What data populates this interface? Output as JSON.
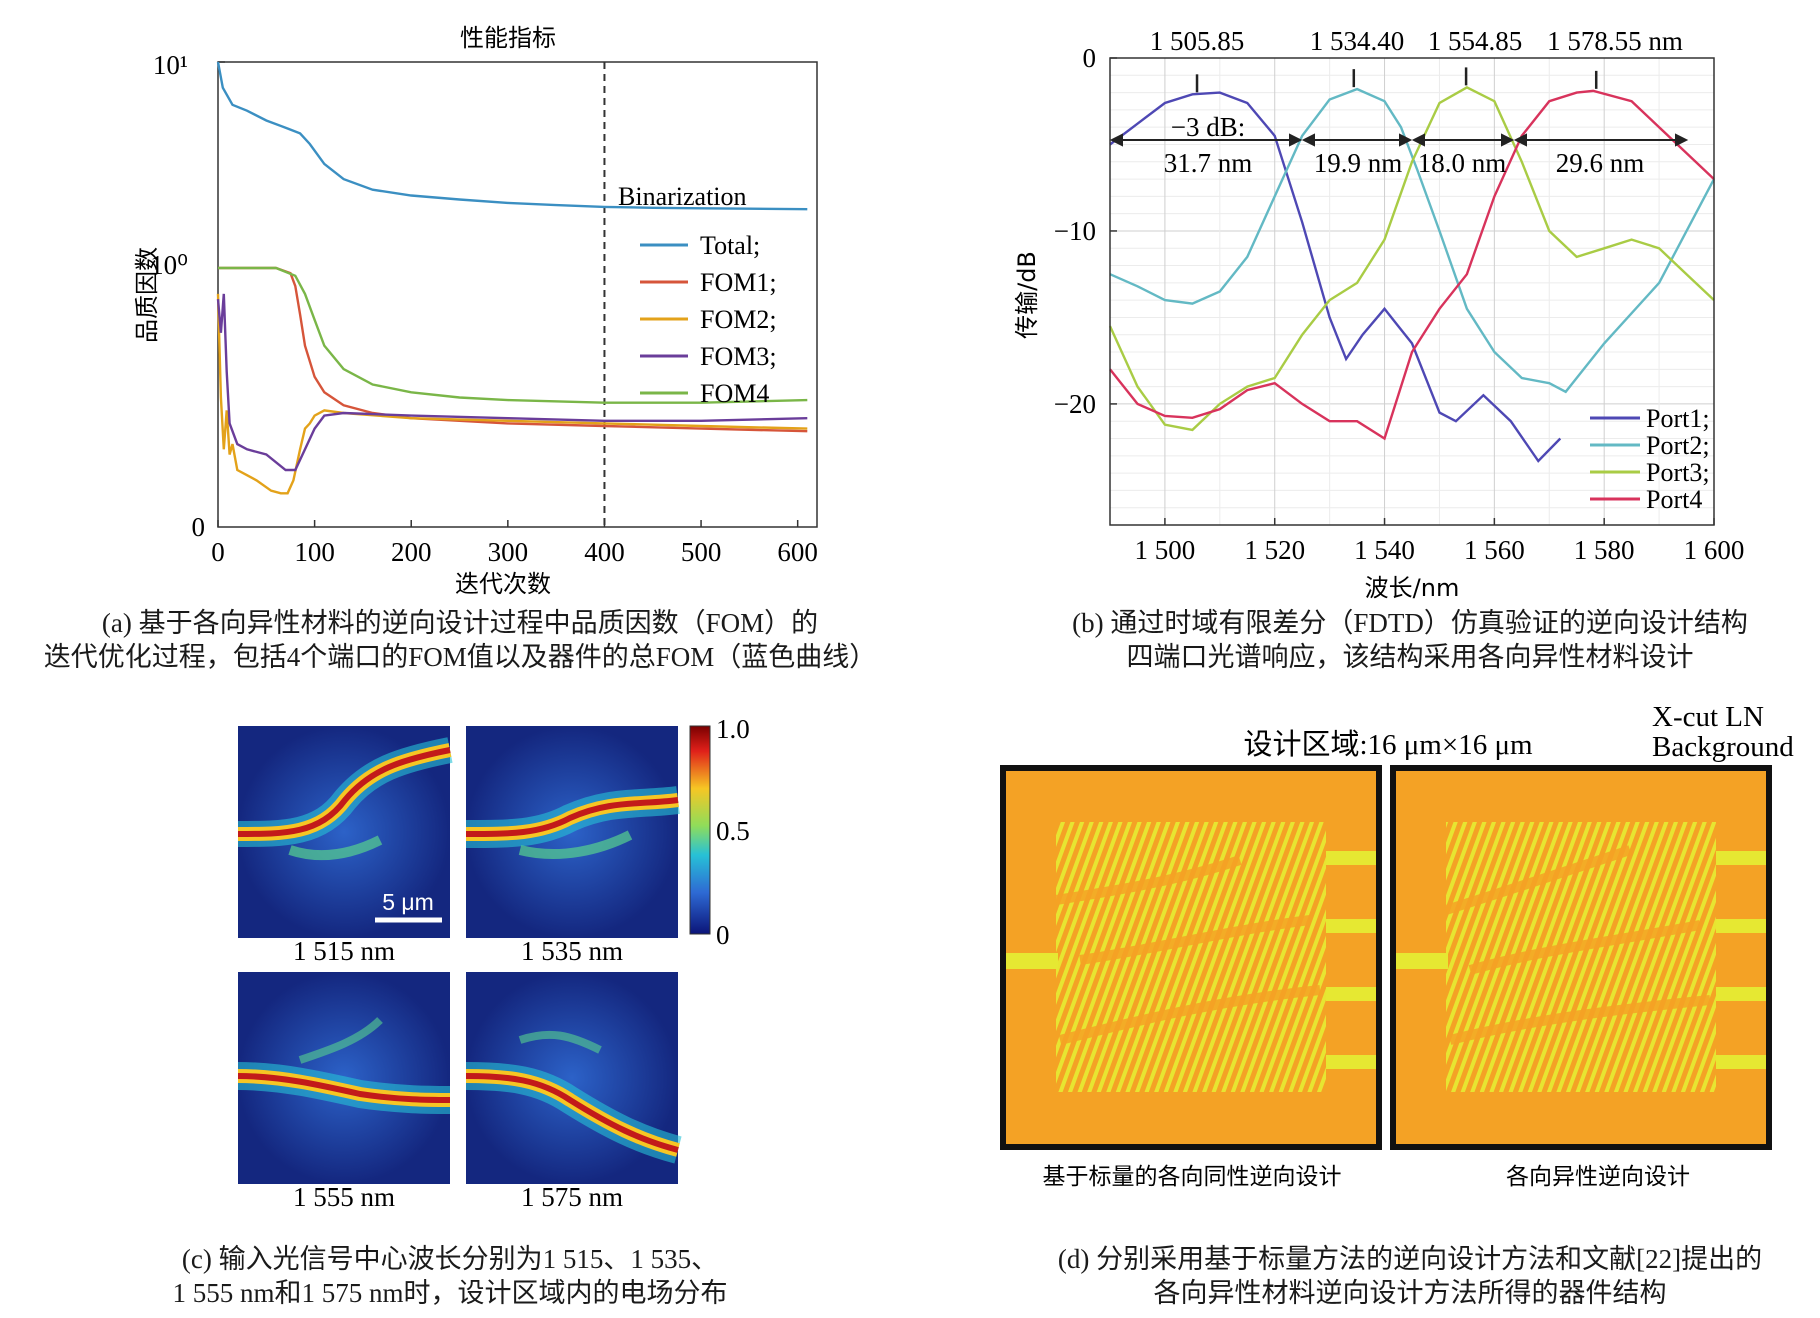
{
  "panel_a": {
    "caption": [
      "(a) 基于各向异性材料的逆向设计过程中品质因数（FOM）的",
      "迭代优化过程，包括4个端口的FOM值以及器件的总FOM（蓝色曲线）"
    ],
    "binarization_label": "Binarization",
    "y_tick_labels": [
      "10¹",
      "10⁰",
      "0"
    ],
    "legend": [
      "Total;",
      "FOM1;",
      "FOM2;",
      "FOM3;",
      "FOM4"
    ]
  },
  "panel_b": {
    "caption": [
      "(b) 通过时域有限差分（FDTD）仿真验证的逆向设计结构",
      "四端口光谱响应，该结构采用各向异性材料设计"
    ],
    "peak_labels": [
      "1 505.85",
      "1 534.40",
      "1 554.85",
      "1 578.55 nm"
    ],
    "db_label": "−3 dB:",
    "bandwidths": [
      "31.7 nm",
      "19.9 nm",
      "18.0 nm",
      "29.6 nm"
    ]
  },
  "panel_c": {
    "caption": [
      "(c) 输入光信号中心波长分别为1 515、1 535、",
      "1 555 nm和1 575 nm时，设计区域内的电场分布"
    ],
    "field_labels": [
      "1 515 nm",
      "1 535 nm",
      "1 555 nm",
      "1 575 nm"
    ],
    "scale_bar": "5 μm",
    "colorbar_ticks": [
      "1.0",
      "0.5",
      "0"
    ]
  },
  "panel_d": {
    "caption": [
      "(d) 分别采用基于标量方法的逆向设计方法和文献[22]提出的",
      "各向异性材料逆向设计方法所得的器件结构"
    ],
    "design_region": "设计区域:16 μm×16 μm",
    "background": [
      "X-cut LN",
      "Background"
    ],
    "sub_labels": [
      "基于标量的各向同性逆向设计",
      "各向异性逆向设计"
    ],
    "colors": {
      "background": "#f4a225",
      "structure": "#e6e832",
      "frame": "#111111"
    }
  },
  "chart_data": [
    {
      "type": "line",
      "title": "性能指标",
      "xlabel": "迭代次数",
      "ylabel": "品质因数",
      "xlim": [
        0,
        620
      ],
      "x_ticks": [
        0,
        100,
        200,
        300,
        400,
        500,
        600
      ],
      "y_scale": "symlog",
      "binarization_at": 400,
      "legend_position": "right",
      "series": [
        {
          "name": "Total",
          "color": "#3b8fc2",
          "x": [
            0,
            5,
            15,
            30,
            50,
            70,
            85,
            95,
            110,
            130,
            160,
            200,
            250,
            300,
            350,
            400,
            450,
            500,
            550,
            610
          ],
          "y": [
            10,
            7.5,
            6.2,
            5.8,
            5.2,
            4.8,
            4.5,
            4.0,
            3.2,
            2.7,
            2.4,
            2.25,
            2.15,
            2.07,
            2.02,
            1.98,
            1.96,
            1.95,
            1.94,
            1.93
          ]
        },
        {
          "name": "FOM1",
          "color": "#d6553a",
          "x": [
            0,
            60,
            75,
            80,
            85,
            90,
            100,
            110,
            130,
            160,
            200,
            250,
            300,
            400,
            500,
            610
          ],
          "y": [
            1.0,
            1.0,
            0.98,
            0.93,
            0.82,
            0.7,
            0.58,
            0.52,
            0.47,
            0.44,
            0.42,
            0.41,
            0.4,
            0.39,
            0.38,
            0.37
          ]
        },
        {
          "name": "FOM2",
          "color": "#e3a21a",
          "x": [
            0,
            3,
            6,
            9,
            12,
            15,
            20,
            30,
            40,
            55,
            65,
            72,
            78,
            85,
            90,
            95,
            100,
            110,
            130,
            200,
            300,
            400,
            500,
            610
          ],
          "y": [
            0.9,
            0.5,
            0.3,
            0.45,
            0.28,
            0.32,
            0.22,
            0.2,
            0.18,
            0.14,
            0.13,
            0.13,
            0.18,
            0.3,
            0.38,
            0.4,
            0.43,
            0.45,
            0.44,
            0.42,
            0.41,
            0.4,
            0.39,
            0.38
          ]
        },
        {
          "name": "FOM3",
          "color": "#6a3d9a",
          "x": [
            0,
            3,
            6,
            9,
            12,
            20,
            30,
            50,
            70,
            80,
            90,
            100,
            110,
            130,
            200,
            300,
            400,
            500,
            610
          ],
          "y": [
            0.88,
            0.75,
            0.9,
            0.6,
            0.4,
            0.32,
            0.3,
            0.28,
            0.22,
            0.22,
            0.3,
            0.38,
            0.43,
            0.44,
            0.43,
            0.42,
            0.41,
            0.41,
            0.42
          ]
        },
        {
          "name": "FOM4",
          "color": "#7ab648",
          "x": [
            0,
            60,
            80,
            90,
            100,
            110,
            130,
            160,
            200,
            250,
            300,
            400,
            500,
            610
          ],
          "y": [
            1.0,
            1.0,
            0.97,
            0.9,
            0.8,
            0.7,
            0.61,
            0.55,
            0.52,
            0.5,
            0.49,
            0.48,
            0.48,
            0.49
          ]
        }
      ]
    },
    {
      "type": "line",
      "xlabel": "波长/nm",
      "ylabel": "传输/dB",
      "xlim": [
        1490,
        1600
      ],
      "ylim": [
        -27,
        0
      ],
      "x_ticks": [
        1500,
        1520,
        1540,
        1560,
        1580,
        1600
      ],
      "x_tick_labels": [
        "1 500",
        "1 520",
        "1 540",
        "1 560",
        "1 580",
        "1 600"
      ],
      "y_ticks": [
        0,
        -10,
        -20
      ],
      "y_tick_labels": [
        "0",
        "−10",
        "−20"
      ],
      "grid": true,
      "legend_position": "bottom-right",
      "peaks": [
        1505.85,
        1534.4,
        1554.85,
        1578.55
      ],
      "series": [
        {
          "name": "Port1;",
          "color": "#4e48b4",
          "x": [
            1490,
            1495,
            1500,
            1505,
            1510,
            1515,
            1520,
            1525,
            1530,
            1533,
            1536,
            1540,
            1545,
            1550,
            1553,
            1558,
            1563,
            1568,
            1572
          ],
          "y": [
            -5,
            -3.8,
            -2.6,
            -2.1,
            -2.0,
            -2.6,
            -4.5,
            -9.5,
            -15,
            -17.4,
            -16.0,
            -14.5,
            -16.5,
            -20.5,
            -21,
            -19.5,
            -21.0,
            -23.3,
            -22
          ]
        },
        {
          "name": "Port2;",
          "color": "#63b9c4",
          "x": [
            1490,
            1495,
            1500,
            1505,
            1510,
            1515,
            1520,
            1525,
            1530,
            1535,
            1540,
            1543,
            1546,
            1550,
            1555,
            1560,
            1565,
            1570,
            1573,
            1580,
            1590,
            1600
          ],
          "y": [
            -12.5,
            -13.2,
            -14.0,
            -14.2,
            -13.5,
            -11.5,
            -8,
            -4.5,
            -2.4,
            -1.8,
            -2.5,
            -4.0,
            -6.5,
            -10,
            -14.5,
            -17,
            -18.5,
            -18.8,
            -19.3,
            -16.5,
            -13,
            -7
          ]
        },
        {
          "name": "Port3;",
          "color": "#a9cc45",
          "x": [
            1490,
            1495,
            1500,
            1505,
            1510,
            1515,
            1520,
            1525,
            1530,
            1535,
            1540,
            1545,
            1550,
            1555,
            1560,
            1565,
            1570,
            1575,
            1580,
            1585,
            1590,
            1595,
            1600
          ],
          "y": [
            -15.5,
            -19,
            -21.2,
            -21.5,
            -20,
            -19,
            -18.5,
            -16,
            -14,
            -13,
            -10.5,
            -6,
            -2.6,
            -1.7,
            -2.5,
            -6,
            -10,
            -11.5,
            -11.0,
            -10.5,
            -11,
            -12.5,
            -14
          ]
        },
        {
          "name": "Port4",
          "color": "#d8335c",
          "x": [
            1490,
            1495,
            1500,
            1505,
            1510,
            1515,
            1520,
            1525,
            1530,
            1535,
            1540,
            1545,
            1550,
            1555,
            1560,
            1565,
            1570,
            1575,
            1578,
            1585,
            1590,
            1595,
            1600
          ],
          "y": [
            -18,
            -20.0,
            -20.7,
            -20.8,
            -20.3,
            -19.2,
            -18.8,
            -20.0,
            -21.0,
            -21.0,
            -22.0,
            -17,
            -14.5,
            -12.5,
            -8.0,
            -4.5,
            -2.5,
            -2.0,
            -1.9,
            -2.5,
            -4.0,
            -5.5,
            -7.0
          ]
        }
      ]
    }
  ]
}
